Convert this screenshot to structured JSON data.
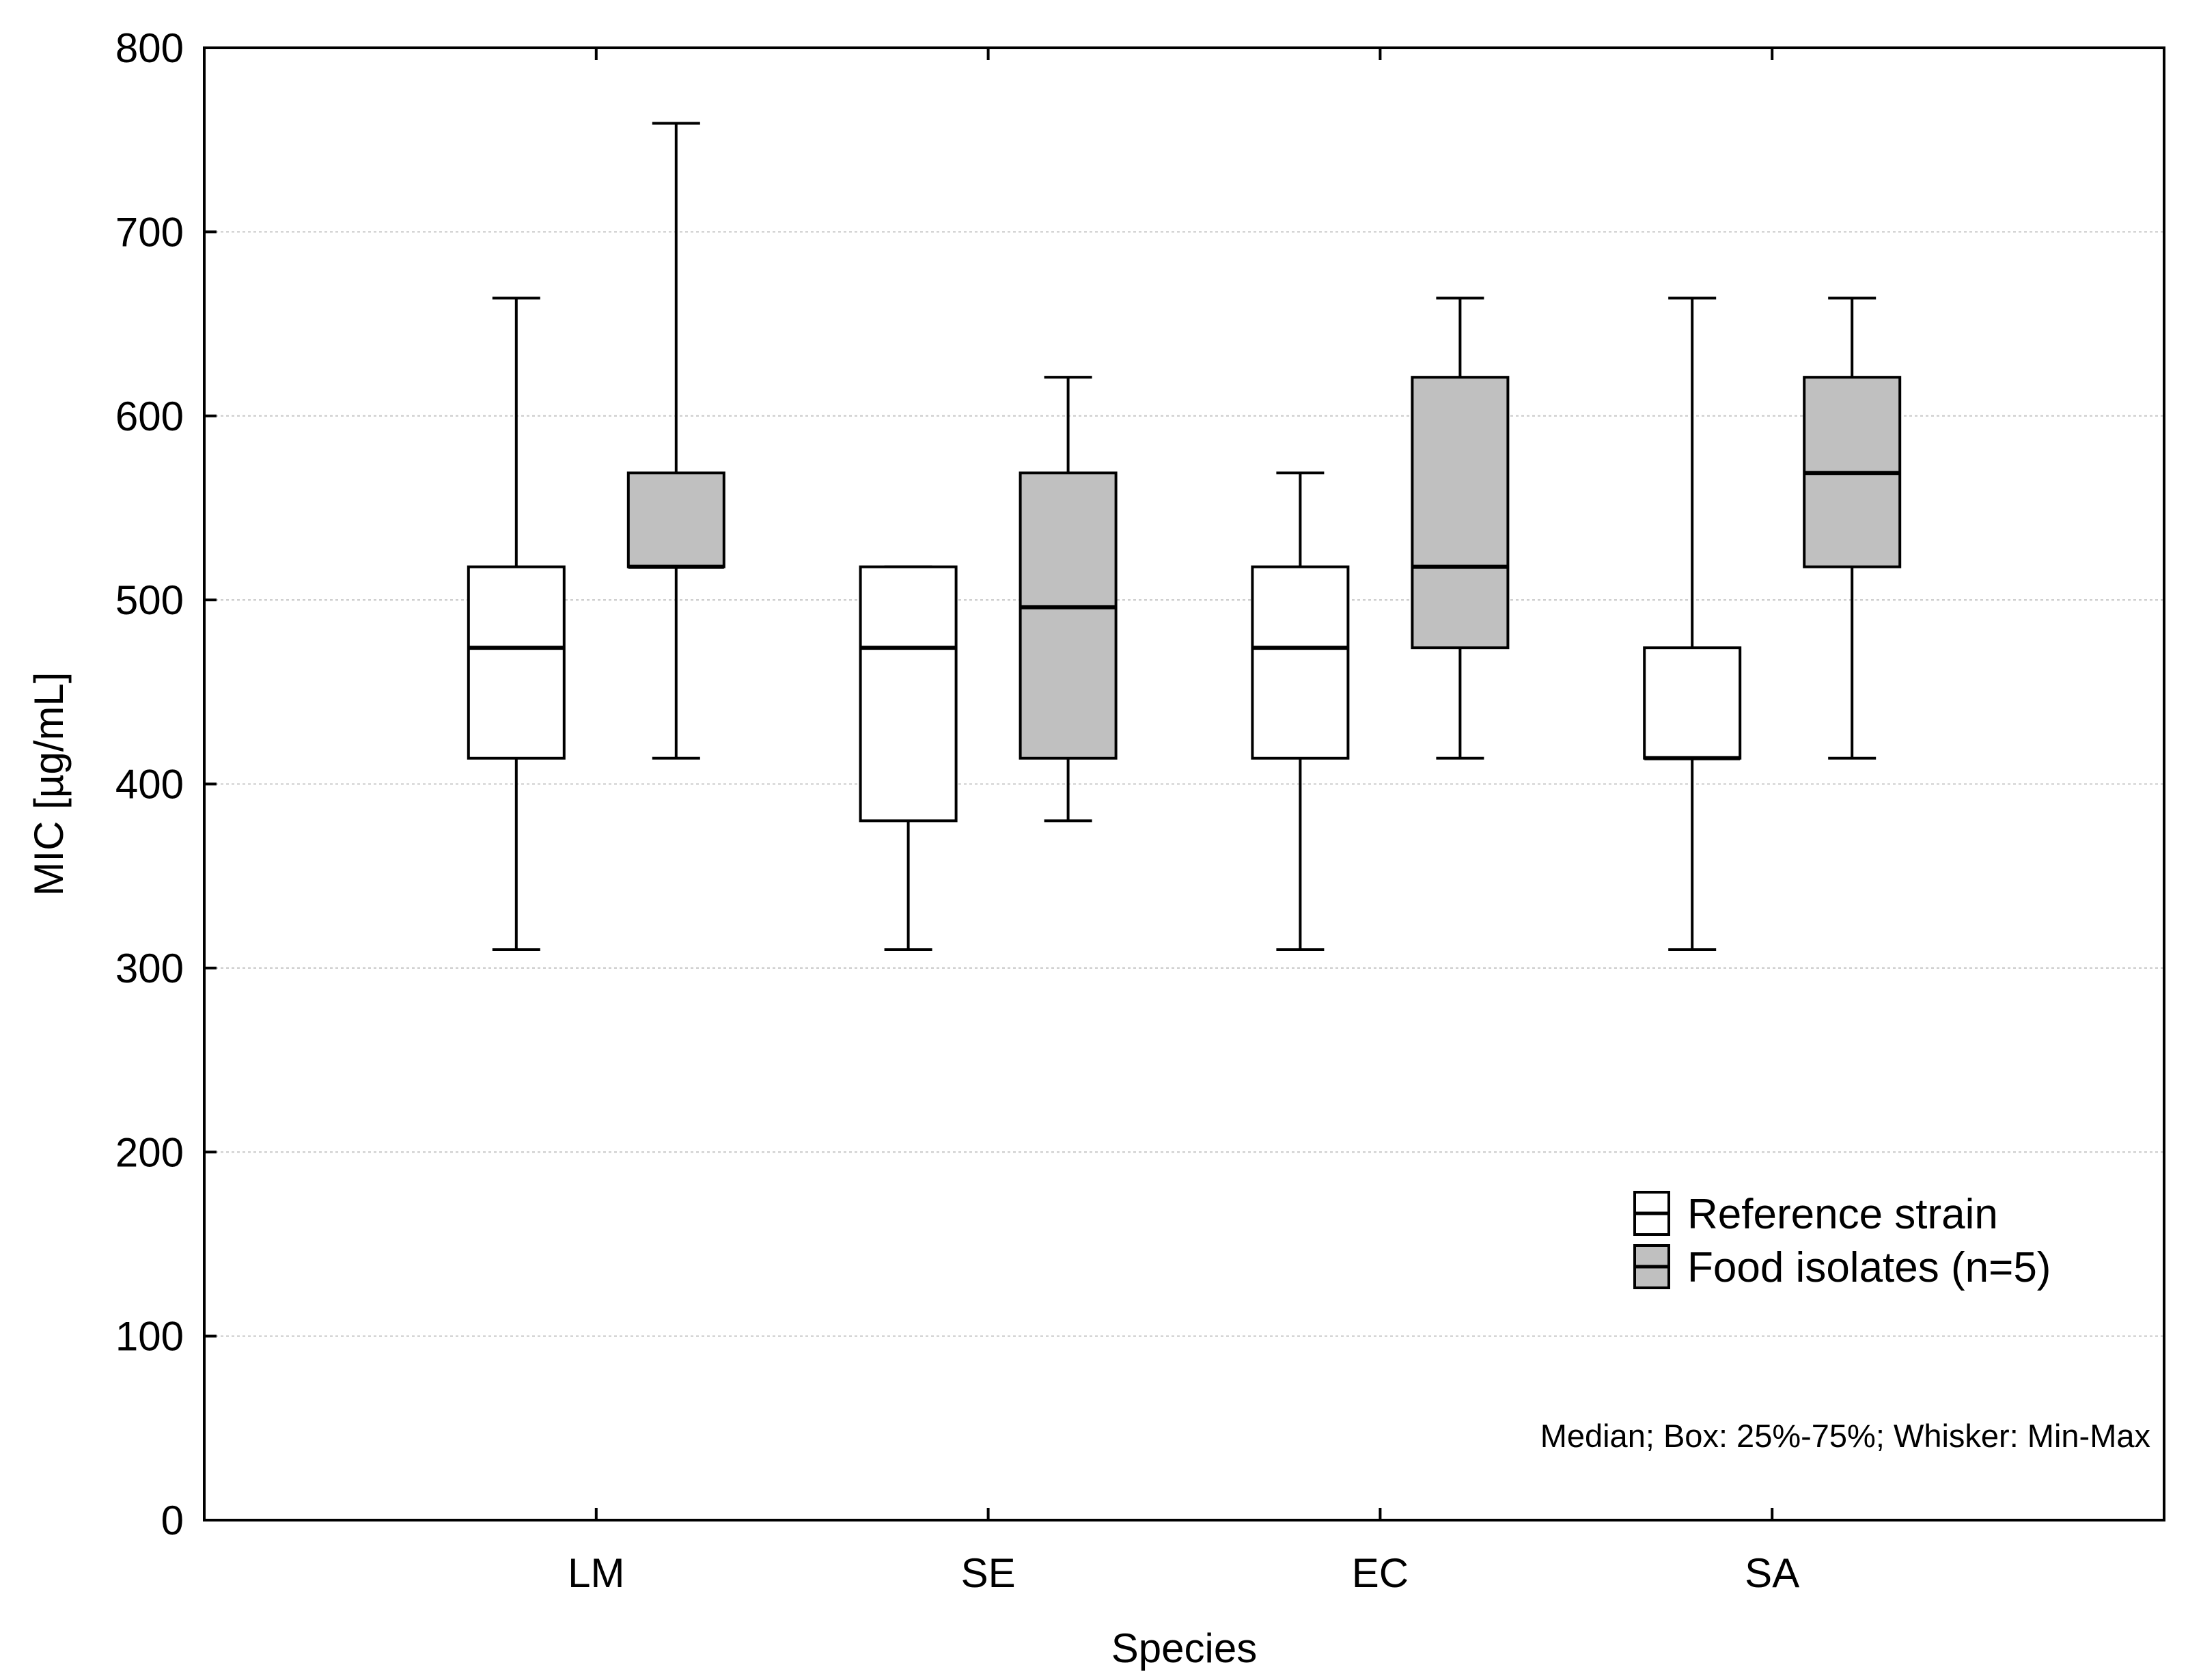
{
  "chart_data": {
    "type": "boxplot",
    "title": "",
    "xlabel": "Species",
    "ylabel": "MIC [µg/mL]",
    "ylim": [
      0,
      800
    ],
    "yticks": [
      0,
      100,
      200,
      300,
      400,
      500,
      600,
      700,
      800
    ],
    "grid": true,
    "categories": [
      "LM",
      "SE",
      "EC",
      "SA"
    ],
    "series": [
      {
        "name": "Reference strain",
        "color": "#ffffff",
        "boxes": [
          {
            "min": 310,
            "q1": 414,
            "median": 474,
            "q3": 518,
            "max": 664
          },
          {
            "min": 310,
            "q1": 380,
            "median": 474,
            "q3": 518,
            "max": 518
          },
          {
            "min": 310,
            "q1": 414,
            "median": 474,
            "q3": 518,
            "max": 569
          },
          {
            "min": 310,
            "q1": 414,
            "median": 414,
            "q3": 474,
            "max": 664
          }
        ]
      },
      {
        "name": "Food isolates (n=5)",
        "color": "#c0c0c0",
        "boxes": [
          {
            "min": 414,
            "q1": 518,
            "median": 518,
            "q3": 569,
            "max": 759
          },
          {
            "min": 380,
            "q1": 414,
            "median": 496,
            "q3": 569,
            "max": 621
          },
          {
            "min": 414,
            "q1": 474,
            "median": 518,
            "q3": 621,
            "max": 664
          },
          {
            "min": 414,
            "q1": 518,
            "median": 569,
            "q3": 621,
            "max": 664
          }
        ]
      }
    ],
    "legend_position": "bottom-right",
    "annotation": "Median; Box: 25%-75%; Whisker: Min-Max"
  }
}
